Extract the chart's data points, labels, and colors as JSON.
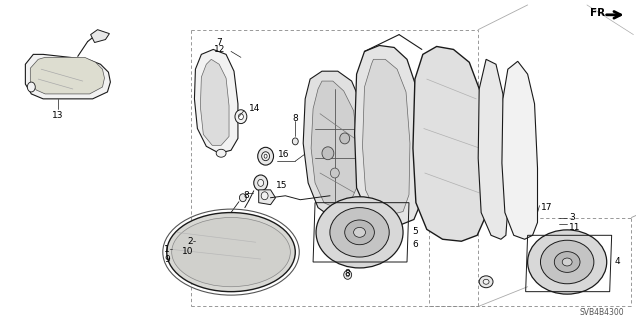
{
  "bg_color": "#ffffff",
  "diagram_code": "SVB4B4300",
  "line_color": "#1a1a1a",
  "text_color": "#000000",
  "label_fontsize": 6.5,
  "diagram_fontsize": 5.5,
  "fr_fontsize": 7.5,
  "dashed_color": "#888888",
  "gray_fill": "#e8e8e8",
  "dark_gray": "#cccccc",
  "light_gray": "#f2f2f2"
}
